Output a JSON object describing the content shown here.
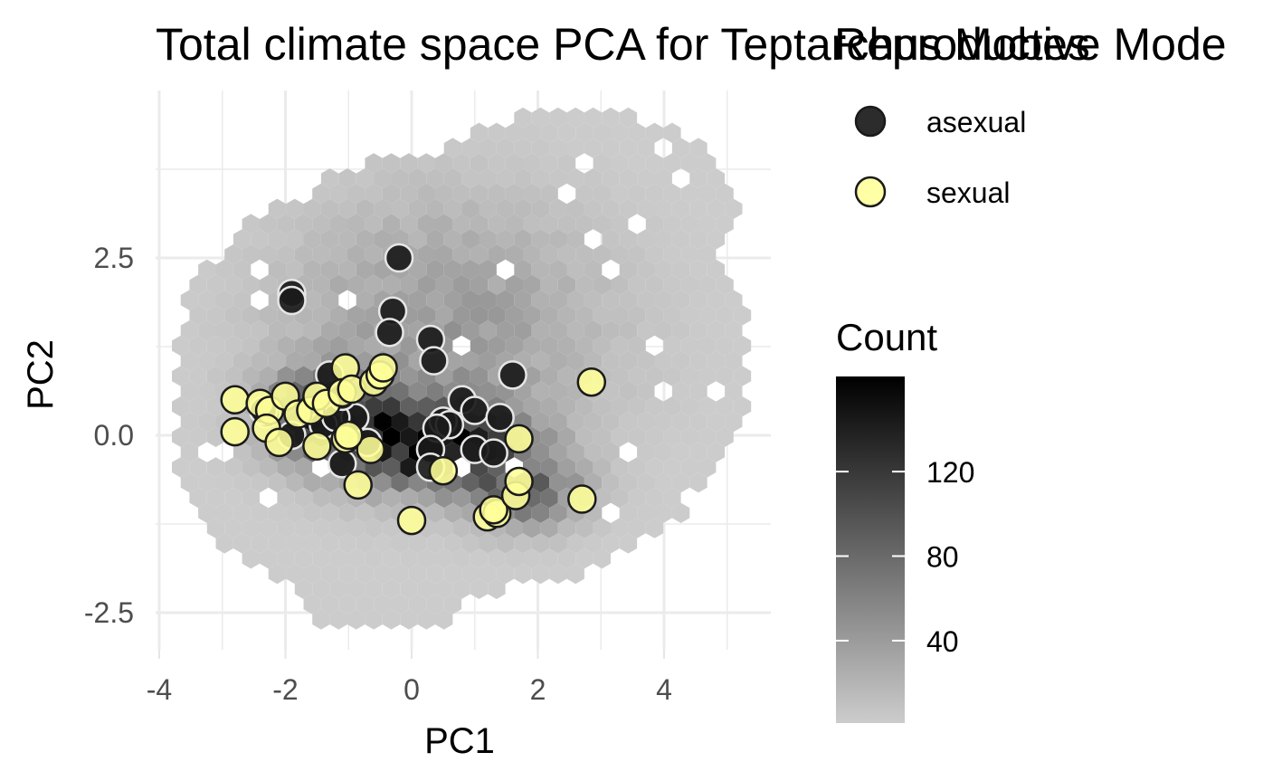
{
  "chart_data": {
    "type": "scatter",
    "title": "Total climate space PCA for Teptarchus Mobes",
    "title_overlay": "Reproductive Mode",
    "xlabel": "PC1",
    "ylabel": "PC2",
    "xlim": [
      -4,
      5.6
    ],
    "ylim": [
      -3.1,
      4.9
    ],
    "x_ticks": [
      -4,
      -2,
      0,
      2,
      4
    ],
    "x_tick_labels": [
      "-4",
      "-2",
      "0",
      "2",
      "4"
    ],
    "y_ticks": [
      -2.5,
      0,
      2.5
    ],
    "y_tick_labels": [
      "-2.5",
      "0.0",
      "2.5"
    ],
    "grid": true,
    "background": {
      "type": "hexbin",
      "fill_legend_title": "Count",
      "fill_ticks": [
        40,
        80,
        120
      ],
      "fill_tick_labels": [
        "40",
        "80",
        "120"
      ],
      "fill_range": [
        1,
        165
      ],
      "low_color": "#cccccc",
      "high_color": "#000000"
    },
    "legend": {
      "title": "Reproductive Mode",
      "position": "right"
    },
    "series": [
      {
        "name": "asexual",
        "color": "#1a1a1a",
        "points": [
          [
            -0.2,
            2.5
          ],
          [
            -1.9,
            2.0
          ],
          [
            -1.9,
            1.9
          ],
          [
            -0.3,
            1.75
          ],
          [
            -0.35,
            1.45
          ],
          [
            0.3,
            1.35
          ],
          [
            0.35,
            1.05
          ],
          [
            1.6,
            0.85
          ],
          [
            -1.3,
            0.85
          ],
          [
            0.8,
            0.5
          ],
          [
            1.0,
            0.35
          ],
          [
            1.4,
            0.25
          ],
          [
            0.5,
            0.2
          ],
          [
            0.6,
            0.15
          ],
          [
            -0.9,
            0.25
          ],
          [
            -1.4,
            0.15
          ],
          [
            -1.2,
            0.25
          ],
          [
            -2.3,
            0.3
          ],
          [
            -1.9,
            0.0
          ],
          [
            0.4,
            0.1
          ],
          [
            0.3,
            -0.2
          ],
          [
            1.0,
            -0.2
          ],
          [
            1.3,
            -0.25
          ],
          [
            0.3,
            -0.45
          ],
          [
            -1.1,
            -0.4
          ],
          [
            -0.7,
            -0.1
          ],
          [
            -1.1,
            0.55
          ],
          [
            -2.35,
            0.35
          ]
        ]
      },
      {
        "name": "sexual",
        "color": "#ffff99",
        "points": [
          [
            -2.8,
            0.5
          ],
          [
            -2.8,
            0.05
          ],
          [
            -2.4,
            0.45
          ],
          [
            -2.25,
            0.35
          ],
          [
            -2.3,
            0.1
          ],
          [
            -2.1,
            -0.1
          ],
          [
            -2.0,
            0.55
          ],
          [
            -1.8,
            0.3
          ],
          [
            -1.6,
            0.35
          ],
          [
            -1.5,
            0.55
          ],
          [
            -1.35,
            0.45
          ],
          [
            -1.5,
            -0.15
          ],
          [
            -1.05,
            0.95
          ],
          [
            -1.1,
            0.6
          ],
          [
            -0.95,
            0.65
          ],
          [
            -0.6,
            0.75
          ],
          [
            -0.5,
            0.85
          ],
          [
            -0.45,
            0.95
          ],
          [
            -1.05,
            -0.05
          ],
          [
            -0.65,
            -0.2
          ],
          [
            -0.85,
            -0.7
          ],
          [
            0.5,
            -0.5
          ],
          [
            0.0,
            -1.2
          ],
          [
            1.2,
            -1.15
          ],
          [
            1.35,
            -1.1
          ],
          [
            1.3,
            -1.05
          ],
          [
            1.65,
            -0.85
          ],
          [
            1.7,
            -0.65
          ],
          [
            1.7,
            -0.05
          ],
          [
            2.7,
            -0.9
          ],
          [
            2.85,
            0.75
          ],
          [
            -1.0,
            0.0
          ]
        ]
      }
    ]
  }
}
